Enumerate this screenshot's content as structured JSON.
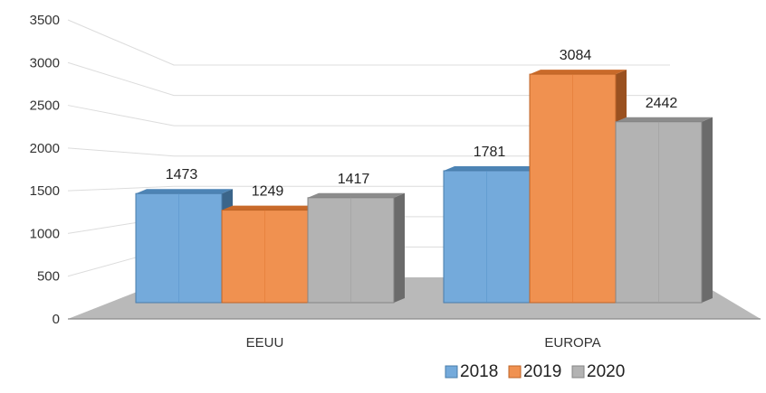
{
  "chart_data": {
    "type": "bar",
    "style": "3d-clustered-column",
    "categories": [
      "EEUU",
      "EUROPA"
    ],
    "series": [
      {
        "name": "2018",
        "values": [
          1473,
          1781
        ],
        "color": "#5b9bd5"
      },
      {
        "name": "2019",
        "values": [
          1249,
          3084
        ],
        "color": "#ed7d31"
      },
      {
        "name": "2020",
        "values": [
          1417,
          2442
        ],
        "color": "#a5a5a5"
      }
    ],
    "ylim": [
      0,
      3500
    ],
    "yticks": [
      0,
      500,
      1000,
      1500,
      2000,
      2500,
      3000,
      3500
    ],
    "grid": true,
    "legend_position": "bottom-right",
    "data_labels": true
  }
}
